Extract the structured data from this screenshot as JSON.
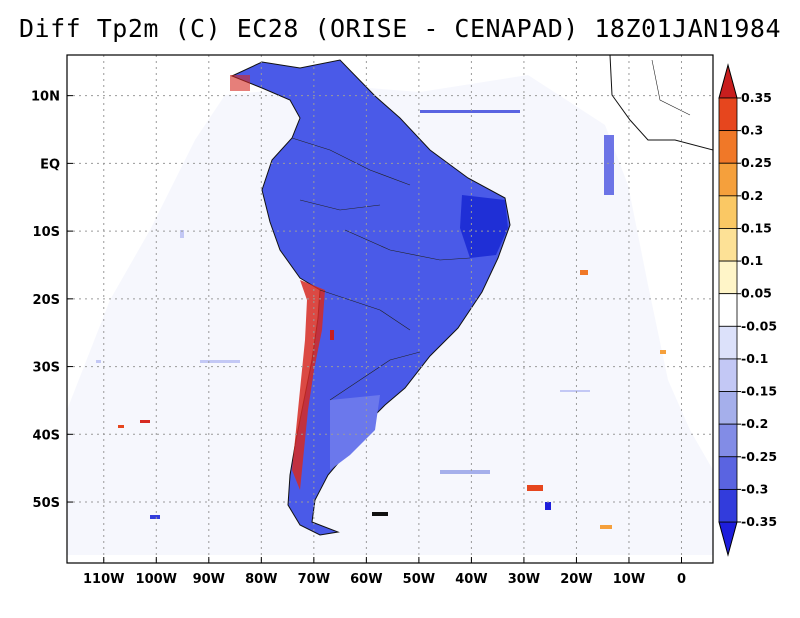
{
  "title": "Diff Tp2m (C) EC28 (ORISE - CENAPAD) 18Z01JAN1984",
  "map": {
    "lon_range": [
      -117,
      6
    ],
    "lat_range": [
      -59,
      16
    ],
    "lon_ticks": [
      {
        "value": -110,
        "label": "110W"
      },
      {
        "value": -100,
        "label": "100W"
      },
      {
        "value": -90,
        "label": "90W"
      },
      {
        "value": -80,
        "label": "80W"
      },
      {
        "value": -70,
        "label": "70W"
      },
      {
        "value": -60,
        "label": "60W"
      },
      {
        "value": -50,
        "label": "50W"
      },
      {
        "value": -40,
        "label": "40W"
      },
      {
        "value": -30,
        "label": "30W"
      },
      {
        "value": -20,
        "label": "20W"
      },
      {
        "value": -10,
        "label": "10W"
      },
      {
        "value": 0,
        "label": "0"
      }
    ],
    "lat_ticks": [
      {
        "value": 10,
        "label": "10N"
      },
      {
        "value": 0,
        "label": "EQ"
      },
      {
        "value": -10,
        "label": "10S"
      },
      {
        "value": -20,
        "label": "20S"
      },
      {
        "value": -30,
        "label": "30S"
      },
      {
        "value": -40,
        "label": "40S"
      },
      {
        "value": -50,
        "label": "50S"
      }
    ],
    "grid": "dotted"
  },
  "colorbar": {
    "levels": [
      "0.35",
      "0.3",
      "0.25",
      "0.2",
      "0.15",
      "0.1",
      "0.05",
      "-0.05",
      "-0.1",
      "-0.15",
      "-0.2",
      "-0.25",
      "-0.3",
      "-0.35"
    ],
    "colors": [
      "#c81e1e",
      "#e6461e",
      "#f07828",
      "#f5a03c",
      "#fac864",
      "#fde196",
      "#fff5c8",
      "#ffffff",
      "#dce1fa",
      "#c3c8f5",
      "#a5afeb",
      "#828ce6",
      "#5a64e1",
      "#323cdc",
      "#1e1edc"
    ]
  }
}
